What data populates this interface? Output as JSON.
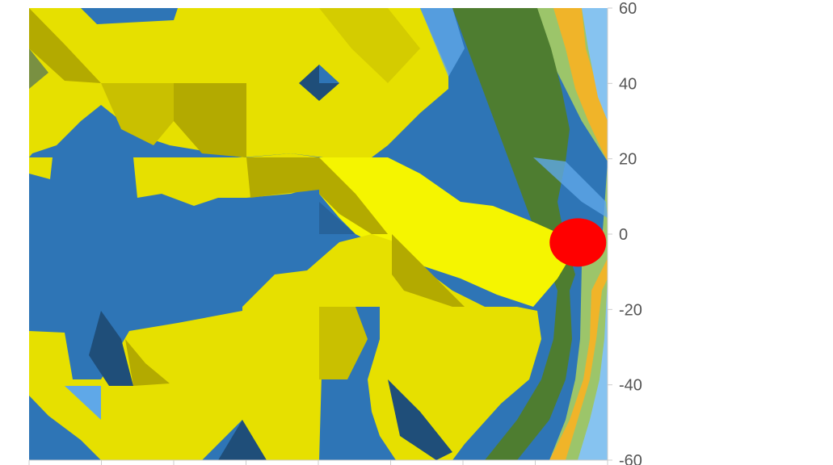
{
  "chart_data": {
    "type": "heatmap",
    "title": "",
    "xlabel": "",
    "ylabel": "",
    "x_tick_count": 9,
    "ylim": [
      -60,
      60
    ],
    "y_ticks": [
      {
        "value": 60,
        "label": "60"
      },
      {
        "value": 40,
        "label": "40"
      },
      {
        "value": 20,
        "label": "20"
      },
      {
        "value": 0,
        "label": "0"
      },
      {
        "value": -20,
        "label": "-20"
      },
      {
        "value": -40,
        "label": "-40"
      },
      {
        "value": -60,
        "label": "-60"
      }
    ],
    "y_axis_side": "right",
    "grid": false,
    "legend": "none",
    "colors": {
      "dark_yellow": "#b3aa00",
      "yellow": "#e6e000",
      "bright_yellow": "#f5f500",
      "dark_blue": "#1f4e79",
      "blue": "#2e75b6",
      "light_blue": "#5fa8e8",
      "pale_blue": "#86c3f0",
      "dark_green": "#4e7d30",
      "green": "#6fa04a",
      "light_green": "#9cc56a",
      "orange": "#f0b429",
      "marker_red": "#ff0000"
    },
    "marker": {
      "shape": "ellipse",
      "color": "red",
      "y": -2,
      "x_col": 7.5
    }
  }
}
